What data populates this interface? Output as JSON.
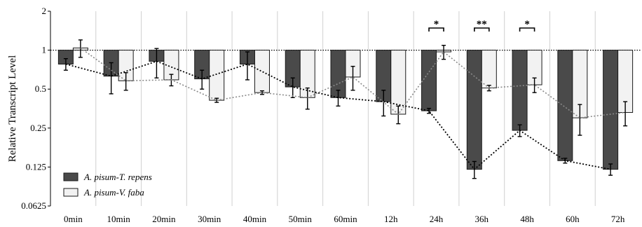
{
  "chart_data": {
    "type": "bar",
    "ylabel": "Relative Transcript Level",
    "yscale": "log2",
    "ylim": [
      0.0625,
      2
    ],
    "yticks": [
      {
        "value": 2,
        "label": "2"
      },
      {
        "value": 1,
        "label": "1"
      },
      {
        "value": 0.5,
        "label": "0.5"
      },
      {
        "value": 0.25,
        "label": "0.25"
      },
      {
        "value": 0.125,
        "label": "0.125"
      },
      {
        "value": 0.0625,
        "label": "0.0625"
      }
    ],
    "baseline": 1,
    "reference_line": 1,
    "categories": [
      "0min",
      "10min",
      "20min",
      "30min",
      "40min",
      "50min",
      "60min",
      "12h",
      "24h",
      "36h",
      "48h",
      "60h",
      "72h"
    ],
    "series": [
      {
        "name": "A. pisum-T. repens",
        "color": "#4a4a4a",
        "values": [
          0.78,
          0.63,
          0.82,
          0.6,
          0.78,
          0.52,
          0.43,
          0.4,
          0.34,
          0.12,
          0.24,
          0.14,
          0.12
        ],
        "errors": [
          0.08,
          0.17,
          0.21,
          0.1,
          0.19,
          0.09,
          0.06,
          0.09,
          0.015,
          0.018,
          0.025,
          0.006,
          0.012
        ]
      },
      {
        "name": "A. pisum-V. faba",
        "color": "#f2f2f2",
        "values": [
          1.04,
          0.58,
          0.59,
          0.41,
          0.47,
          0.43,
          0.62,
          0.32,
          0.97,
          0.51,
          0.54,
          0.3,
          0.33
        ],
        "errors": [
          0.16,
          0.09,
          0.06,
          0.015,
          0.015,
          0.08,
          0.13,
          0.05,
          0.12,
          0.025,
          0.07,
          0.08,
          0.07
        ]
      }
    ],
    "significance": [
      {
        "category": "24h",
        "label": "*"
      },
      {
        "category": "36h",
        "label": "**"
      },
      {
        "category": "48h",
        "label": "*"
      }
    ],
    "legend": {
      "placement": "bottom-left",
      "entries": [
        "A. pisum-T. repens",
        "A. pisum-V. faba"
      ]
    },
    "grid": "vertical-separators"
  }
}
